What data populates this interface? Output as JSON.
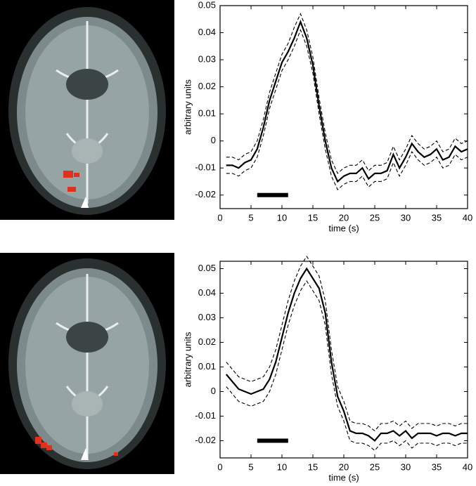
{
  "chart_data": [
    {
      "type": "line",
      "xlabel": "time (s)",
      "ylabel": "arbitrary units",
      "x": [
        1,
        2,
        3,
        4,
        5,
        6,
        7,
        8,
        9,
        10,
        11,
        12,
        13,
        14,
        15,
        16,
        17,
        18,
        19,
        20,
        21,
        22,
        23,
        24,
        25,
        26,
        27,
        28,
        29,
        30,
        31,
        32,
        33,
        34,
        35,
        36,
        37,
        38,
        39,
        40
      ],
      "series": [
        {
          "style": "solid",
          "color": "#000000",
          "values": [
            -0.009,
            -0.009,
            -0.01,
            -0.008,
            -0.007,
            -0.003,
            0.005,
            0.015,
            0.022,
            0.029,
            0.033,
            0.038,
            0.044,
            0.038,
            0.028,
            0.013,
            0.0,
            -0.01,
            -0.015,
            -0.013,
            -0.012,
            -0.012,
            -0.01,
            -0.014,
            -0.012,
            -0.012,
            -0.011,
            -0.005,
            -0.01,
            -0.006,
            -0.001,
            -0.004,
            -0.006,
            -0.005,
            -0.003,
            -0.007,
            -0.006,
            -0.002,
            -0.004,
            -0.003
          ]
        },
        {
          "style": "dashed",
          "color": "#000000",
          "values": [
            -0.006,
            -0.006,
            -0.007,
            -0.005,
            -0.004,
            0.0,
            0.008,
            0.018,
            0.025,
            0.032,
            0.036,
            0.042,
            0.047,
            0.041,
            0.031,
            0.016,
            0.003,
            -0.007,
            -0.012,
            -0.01,
            -0.009,
            -0.009,
            -0.007,
            -0.011,
            -0.009,
            -0.009,
            -0.008,
            -0.002,
            -0.007,
            -0.003,
            0.002,
            -0.001,
            -0.003,
            -0.002,
            0.0,
            -0.004,
            -0.003,
            0.001,
            -0.001,
            0.0
          ]
        },
        {
          "style": "dashed",
          "color": "#000000",
          "values": [
            -0.012,
            -0.012,
            -0.013,
            -0.011,
            -0.01,
            -0.006,
            0.002,
            0.012,
            0.019,
            0.026,
            0.03,
            0.035,
            0.041,
            0.035,
            0.025,
            0.01,
            -0.003,
            -0.013,
            -0.018,
            -0.016,
            -0.015,
            -0.015,
            -0.013,
            -0.017,
            -0.015,
            -0.015,
            -0.014,
            -0.008,
            -0.013,
            -0.009,
            -0.004,
            -0.007,
            -0.009,
            -0.008,
            -0.006,
            -0.01,
            -0.009,
            -0.005,
            -0.007,
            -0.006
          ]
        }
      ],
      "stimulus": {
        "x": [
          6,
          11
        ],
        "y": -0.02
      },
      "xlim": [
        0,
        40
      ],
      "xticks": [
        0,
        5,
        10,
        15,
        20,
        25,
        30,
        35,
        40
      ],
      "ylim": [
        -0.025,
        0.05
      ],
      "yticks": [
        -0.02,
        -0.01,
        0,
        0.01,
        0.02,
        0.03,
        0.04,
        0.05
      ]
    },
    {
      "type": "line",
      "xlabel": "time (s)",
      "ylabel": "arbitrary units",
      "x": [
        1,
        2,
        3,
        4,
        5,
        6,
        7,
        8,
        9,
        10,
        11,
        12,
        13,
        14,
        15,
        16,
        17,
        18,
        19,
        20,
        21,
        22,
        23,
        24,
        25,
        26,
        27,
        28,
        29,
        30,
        31,
        32,
        33,
        34,
        35,
        36,
        37,
        38,
        39,
        40
      ],
      "series": [
        {
          "style": "solid",
          "color": "#000000",
          "values": [
            0.007,
            0.004,
            0.001,
            0.0,
            -0.001,
            0.0,
            0.001,
            0.005,
            0.012,
            0.022,
            0.032,
            0.04,
            0.046,
            0.05,
            0.046,
            0.042,
            0.032,
            0.012,
            -0.002,
            -0.008,
            -0.016,
            -0.017,
            -0.017,
            -0.018,
            -0.02,
            -0.017,
            -0.017,
            -0.016,
            -0.018,
            -0.016,
            -0.019,
            -0.017,
            -0.017,
            -0.017,
            -0.018,
            -0.017,
            -0.017,
            -0.018,
            -0.017,
            -0.017
          ]
        },
        {
          "style": "dashed",
          "color": "#000000",
          "values": [
            0.012,
            0.009,
            0.006,
            0.005,
            0.004,
            0.005,
            0.006,
            0.01,
            0.017,
            0.027,
            0.037,
            0.045,
            0.051,
            0.055,
            0.051,
            0.047,
            0.037,
            0.017,
            0.002,
            -0.004,
            -0.012,
            -0.013,
            -0.013,
            -0.014,
            -0.016,
            -0.013,
            -0.013,
            -0.012,
            -0.014,
            -0.012,
            -0.015,
            -0.013,
            -0.013,
            -0.013,
            -0.014,
            -0.013,
            -0.013,
            -0.014,
            -0.013,
            -0.013
          ]
        },
        {
          "style": "dashed",
          "color": "#000000",
          "values": [
            0.002,
            -0.001,
            -0.004,
            -0.005,
            -0.006,
            -0.005,
            -0.004,
            0.0,
            0.007,
            0.017,
            0.027,
            0.035,
            0.041,
            0.045,
            0.041,
            0.037,
            0.027,
            0.007,
            -0.006,
            -0.012,
            -0.02,
            -0.021,
            -0.021,
            -0.022,
            -0.024,
            -0.021,
            -0.021,
            -0.02,
            -0.022,
            -0.02,
            -0.023,
            -0.021,
            -0.021,
            -0.021,
            -0.022,
            -0.021,
            -0.021,
            -0.022,
            -0.021,
            -0.021
          ]
        }
      ],
      "stimulus": {
        "x": [
          6,
          11
        ],
        "y": -0.02
      },
      "xlim": [
        0,
        40
      ],
      "xticks": [
        0,
        5,
        10,
        15,
        20,
        25,
        30,
        35,
        40
      ],
      "ylim": [
        -0.027,
        0.053
      ],
      "yticks": [
        -0.02,
        -0.01,
        0,
        0.01,
        0.02,
        0.03,
        0.04,
        0.05
      ]
    }
  ]
}
